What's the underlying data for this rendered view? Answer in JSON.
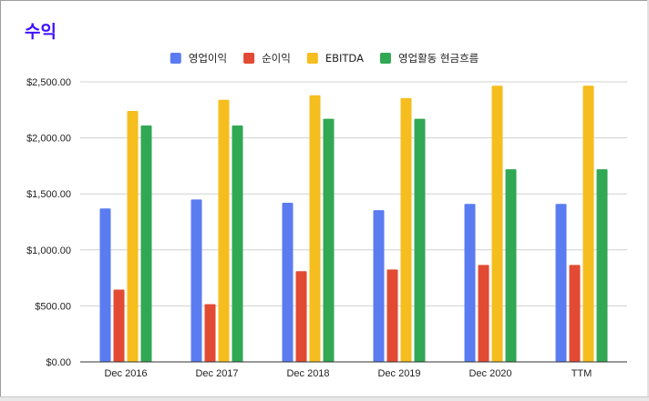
{
  "chart_data": {
    "type": "bar",
    "title": "수익",
    "categories": [
      "Dec 2016",
      "Dec 2017",
      "Dec 2018",
      "Dec 2019",
      "Dec 2020",
      "TTM"
    ],
    "series": [
      {
        "name": "영업이익",
        "color": "#5b7cf0",
        "values": [
          1370,
          1450,
          1420,
          1355,
          1410,
          1410
        ]
      },
      {
        "name": "순이익",
        "color": "#e24a33",
        "values": [
          645,
          515,
          810,
          825,
          865,
          865
        ]
      },
      {
        "name": "EBITDA",
        "color": "#f5be1e",
        "values": [
          2240,
          2340,
          2380,
          2355,
          2465,
          2465
        ]
      },
      {
        "name": "영업활동 현금흐름",
        "color": "#31a853",
        "values": [
          2110,
          2110,
          2170,
          2170,
          1720,
          1720
        ]
      }
    ],
    "ylim": [
      0,
      2500
    ],
    "yticks": [
      "$0.00",
      "$500.00",
      "$1,000.00",
      "$1,500.00",
      "$2,000.00",
      "$2,500.00"
    ],
    "ytick_values": [
      0,
      500,
      1000,
      1500,
      2000,
      2500
    ],
    "grid": true,
    "legend_position": "top-center"
  }
}
